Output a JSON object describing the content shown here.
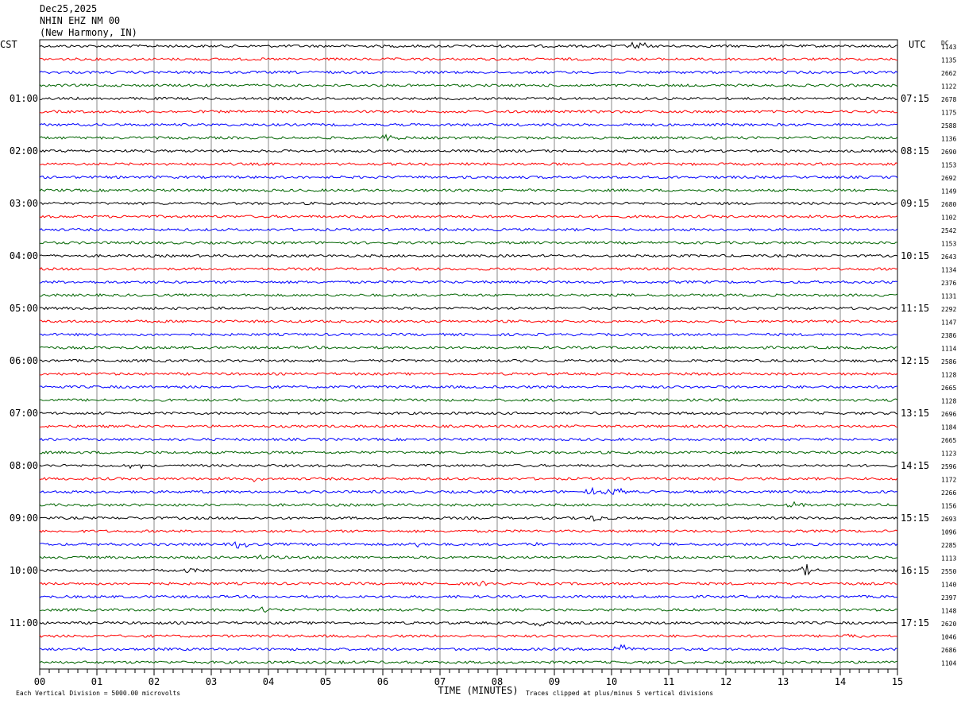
{
  "header": {
    "date": "Dec25,2025",
    "station": "NHIN EHZ NM 00",
    "location": "(New Harmony, IN)"
  },
  "chart_data": {
    "type": "line",
    "title": "",
    "xlabel": "TIME (MINUTES)",
    "xlim": [
      0,
      15
    ],
    "x_ticks": [
      "00",
      "01",
      "02",
      "03",
      "04",
      "05",
      "06",
      "07",
      "08",
      "09",
      "10",
      "11",
      "12",
      "13",
      "14",
      "15"
    ],
    "left_axis_label": "CST",
    "right_axis_label": "UTC",
    "dc_label": "DC",
    "left_hour_labels": [
      "01:00",
      "02:00",
      "03:00",
      "04:00",
      "05:00",
      "06:00",
      "07:00",
      "08:00",
      "09:00",
      "10:00",
      "11:00"
    ],
    "right_hour_labels": [
      "07:15",
      "08:15",
      "09:15",
      "10:15",
      "11:15",
      "12:15",
      "13:15",
      "14:15",
      "15:15",
      "16:15",
      "17:15"
    ],
    "trace_colors": [
      "#000000",
      "#ff0000",
      "#0000ff",
      "#006400"
    ],
    "grid": true,
    "dc_offsets": [
      1143,
      1135,
      2662,
      1122,
      2678,
      1175,
      2588,
      1136,
      2690,
      1153,
      2692,
      1149,
      2680,
      1102,
      2542,
      1153,
      2643,
      1134,
      2376,
      1131,
      2292,
      1147,
      2386,
      1114,
      2586,
      1128,
      2665,
      1128,
      2696,
      1184,
      2665,
      1123,
      2596,
      1172,
      2266,
      1156,
      2693,
      1096,
      2285,
      1113,
      2550,
      1140,
      2397,
      1148,
      2620,
      1046,
      2686,
      1104
    ],
    "events": [
      {
        "trace": 0,
        "minute": 10.45,
        "amplitude": 0.9
      },
      {
        "trace": 7,
        "minute": 6.1,
        "amplitude": 0.6
      },
      {
        "trace": 32,
        "minute": 1.7,
        "amplitude": 0.5
      },
      {
        "trace": 33,
        "minute": 3.75,
        "amplitude": 0.4
      },
      {
        "trace": 34,
        "minute": 9.7,
        "amplitude": 0.7
      },
      {
        "trace": 34,
        "minute": 10.05,
        "amplitude": 0.8
      },
      {
        "trace": 35,
        "minute": 13.2,
        "amplitude": 0.7
      },
      {
        "trace": 36,
        "minute": 9.72,
        "amplitude": 0.6
      },
      {
        "trace": 38,
        "minute": 3.5,
        "amplitude": 0.8
      },
      {
        "trace": 38,
        "minute": 6.6,
        "amplitude": 0.4
      },
      {
        "trace": 38,
        "minute": 8.7,
        "amplitude": 0.4
      },
      {
        "trace": 39,
        "minute": 4.0,
        "amplitude": 0.5
      },
      {
        "trace": 40,
        "minute": 2.65,
        "amplitude": 0.8
      },
      {
        "trace": 40,
        "minute": 13.4,
        "amplitude": 1.0
      },
      {
        "trace": 41,
        "minute": 7.7,
        "amplitude": 0.4
      },
      {
        "trace": 43,
        "minute": 3.9,
        "amplitude": 0.5
      },
      {
        "trace": 44,
        "minute": 8.8,
        "amplitude": 0.5
      },
      {
        "trace": 45,
        "minute": 14.2,
        "amplitude": 0.5
      },
      {
        "trace": 46,
        "minute": 10.2,
        "amplitude": 0.8
      },
      {
        "trace": 47,
        "minute": 5.3,
        "amplitude": 0.4
      }
    ]
  },
  "footer": {
    "scale_note": "Each Vertical Division = 5000.00 microvolts",
    "clip_note": "Traces clipped at plus/minus 5 vertical divisions"
  }
}
